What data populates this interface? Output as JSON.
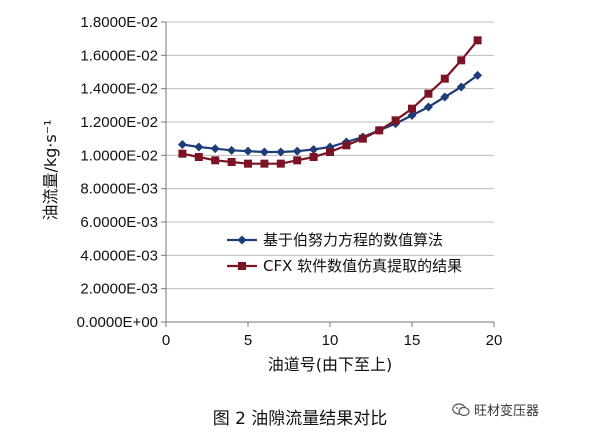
{
  "chart_data": {
    "type": "line",
    "ylabel": "油流量/kg·s⁻¹",
    "xlabel": "油道号(由下至上)",
    "xlim": [
      0,
      20
    ],
    "ylim": [
      0,
      0.018
    ],
    "x_ticks": [
      "0",
      "5",
      "10",
      "15",
      "20"
    ],
    "y_ticks": [
      "0.0000E+00",
      "2.0000E-03",
      "4.0000E-03",
      "6.0000E-03",
      "8.0000E-03",
      "1.0000E-02",
      "1.2000E-02",
      "1.4000E-02",
      "1.6000E-02",
      "1.8000E-02"
    ],
    "grid": "horizontal",
    "legend_position": "center-right",
    "series": [
      {
        "name": "基于伯努力方程的数值算法",
        "color": "#1f3c78",
        "marker": "diamond",
        "x": [
          1,
          2,
          3,
          4,
          5,
          6,
          7,
          8,
          9,
          10,
          11,
          12,
          13,
          14,
          15,
          16,
          17,
          18,
          19
        ],
        "values": [
          0.01065,
          0.0105,
          0.0104,
          0.0103,
          0.01025,
          0.0102,
          0.0102,
          0.01025,
          0.01035,
          0.0105,
          0.0108,
          0.0111,
          0.0115,
          0.0119,
          0.0124,
          0.0129,
          0.0135,
          0.0141,
          0.0148
        ]
      },
      {
        "name": "CFX 软件数值仿真提取的结果",
        "color": "#7a1424",
        "marker": "square",
        "x": [
          1,
          2,
          3,
          4,
          5,
          6,
          7,
          8,
          9,
          10,
          11,
          12,
          13,
          14,
          15,
          16,
          17,
          18,
          19
        ],
        "values": [
          0.0101,
          0.0099,
          0.0097,
          0.0096,
          0.0095,
          0.0095,
          0.0095,
          0.0097,
          0.0099,
          0.0102,
          0.0106,
          0.011,
          0.0115,
          0.0121,
          0.0128,
          0.0137,
          0.0146,
          0.0157,
          0.0169
        ]
      }
    ]
  },
  "caption": "图 2    油隙流量结果对比",
  "watermark": {
    "icon": "wechat-icon",
    "text": "旺材变压器"
  }
}
